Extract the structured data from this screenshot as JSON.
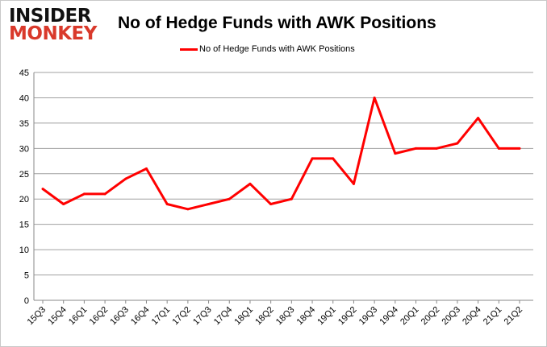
{
  "logo": {
    "line1": "INSIDER",
    "line2": "MONKEY"
  },
  "chart_data": {
    "type": "line",
    "title": "No of Hedge Funds with AWK Positions",
    "xlabel": "",
    "ylabel": "",
    "ylim": [
      0,
      45
    ],
    "yticks": [
      0,
      5,
      10,
      15,
      20,
      25,
      30,
      35,
      40,
      45
    ],
    "grid": true,
    "legend_position": "top-center",
    "categories": [
      "15Q3",
      "15Q4",
      "16Q1",
      "16Q2",
      "16Q3",
      "16Q4",
      "17Q1",
      "17Q2",
      "17Q3",
      "17Q4",
      "18Q1",
      "18Q2",
      "18Q3",
      "18Q4",
      "19Q1",
      "19Q2",
      "19Q3",
      "19Q4",
      "20Q1",
      "20Q2",
      "20Q3",
      "20Q4",
      "21Q1",
      "21Q2"
    ],
    "series": [
      {
        "name": "No of Hedge Funds with AWK Positions",
        "color": "#ff0000",
        "values": [
          22,
          19,
          21,
          21,
          24,
          26,
          19,
          18,
          19,
          20,
          23,
          19,
          20,
          28,
          28,
          23,
          40,
          29,
          30,
          30,
          31,
          36,
          30,
          30
        ]
      }
    ]
  }
}
